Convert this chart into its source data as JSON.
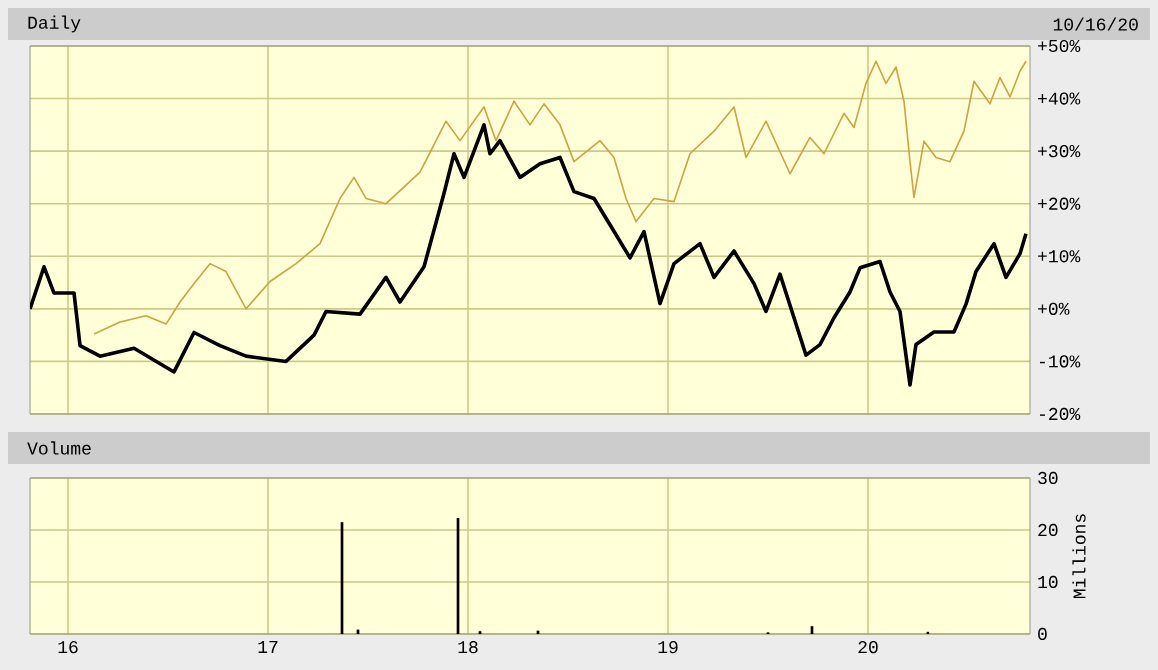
{
  "chart_data": [
    {
      "type": "line",
      "title": "Daily",
      "annotations": [
        "10/16/20"
      ],
      "grid": true,
      "tick_labels": "y",
      "xlim": [
        2015.81,
        2020.81
      ],
      "xticks": [
        2016,
        2017,
        2018,
        2019,
        2020
      ],
      "ylim": [
        -20,
        50
      ],
      "yticks": [
        {
          "value": -20,
          "label": "-20%"
        },
        {
          "value": -10,
          "label": "-10%"
        },
        {
          "value": 0,
          "label": "+0%"
        },
        {
          "value": 10,
          "label": "+10%"
        },
        {
          "value": 20,
          "label": "+20%"
        },
        {
          "value": 30,
          "label": "+30%"
        },
        {
          "value": 40,
          "label": "+40%"
        },
        {
          "value": 50,
          "label": "+50%"
        }
      ],
      "series": [
        {
          "color": "#d4a040",
          "x": [
            2016.13,
            2016.26,
            2016.39,
            2016.49,
            2016.56,
            2016.63,
            2016.71,
            2016.79,
            2016.89,
            2017.01,
            2017.14,
            2017.26,
            2017.36,
            2017.43,
            2017.49,
            2017.59,
            2017.76,
            2017.89,
            2017.96,
            2018.08,
            2018.14,
            2018.23,
            2018.31,
            2018.38,
            2018.46,
            2018.53,
            2018.66,
            2018.73,
            2018.79,
            2018.84,
            2018.93,
            2019.03,
            2019.11,
            2019.23,
            2019.33,
            2019.39,
            2019.49,
            2019.61,
            2019.71,
            2019.78,
            2019.88,
            2019.93,
            2019.99,
            2020.04,
            2020.09,
            2020.14,
            2020.18,
            2020.21,
            2020.23,
            2020.28,
            2020.34,
            2020.41,
            2020.48,
            2020.53,
            2020.61,
            2020.66,
            2020.71,
            2020.76,
            2020.79
          ],
          "values": [
            -4.8,
            -2.5,
            -1.3,
            -2.9,
            1.3,
            4.8,
            8.6,
            7.1,
            0,
            5.2,
            8.6,
            12.4,
            21,
            25,
            21,
            20,
            26,
            35.7,
            32,
            38.4,
            32,
            39.5,
            35,
            39,
            35,
            28,
            32,
            28.8,
            21,
            16.6,
            21,
            20.4,
            29.5,
            33.8,
            38.4,
            28.8,
            35.7,
            25.7,
            32.6,
            29.5,
            37.2,
            34.5,
            42.9,
            47.1,
            42.9,
            46,
            39.5,
            28,
            21.2,
            31.9,
            28.8,
            28,
            33.8,
            43.3,
            39,
            44,
            40.3,
            45.2,
            47.1
          ]
        },
        {
          "color": "#000000",
          "x": [
            2015.81,
            2015.88,
            2015.93,
            2016.03,
            2016.06,
            2016.16,
            2016.33,
            2016.53,
            2016.63,
            2016.76,
            2016.89,
            2017.09,
            2017.23,
            2017.29,
            2017.46,
            2017.59,
            2017.66,
            2017.78,
            2017.88,
            2017.93,
            2017.98,
            2018.08,
            2018.11,
            2018.16,
            2018.26,
            2018.36,
            2018.46,
            2018.53,
            2018.63,
            2018.71,
            2018.81,
            2018.88,
            2018.96,
            2019.03,
            2019.16,
            2019.23,
            2019.33,
            2019.43,
            2019.49,
            2019.56,
            2019.63,
            2019.69,
            2019.76,
            2019.83,
            2019.91,
            2019.96,
            2020.06,
            2020.11,
            2020.16,
            2020.21,
            2020.24,
            2020.33,
            2020.43,
            2020.49,
            2020.54,
            2020.63,
            2020.69,
            2020.76,
            2020.79
          ],
          "values": [
            0,
            8,
            3,
            3,
            -7,
            -9,
            -7.5,
            -12,
            -4.5,
            -7,
            -9,
            -10,
            -5,
            -0.5,
            -1,
            6,
            1.3,
            8,
            22,
            29.5,
            25,
            35,
            29.5,
            32,
            25,
            27.6,
            28.8,
            22.3,
            21,
            16,
            9.7,
            14.7,
            1,
            8.6,
            12.4,
            6,
            11,
            4.8,
            -0.5,
            6.6,
            -1.7,
            -8.8,
            -6.8,
            -1.7,
            3.2,
            7.8,
            9,
            3.2,
            -0.5,
            -14.5,
            -6.8,
            -4.4,
            -4.4,
            0.9,
            7.1,
            12.4,
            6,
            10.5,
            14.3
          ]
        }
      ]
    },
    {
      "type": "bar",
      "title": "Volume",
      "ylabel": "Millions",
      "grid": true,
      "xlim": [
        2015.81,
        2020.81
      ],
      "xticks": [
        {
          "value": 2016,
          "label": "16"
        },
        {
          "value": 2017,
          "label": "17"
        },
        {
          "value": 2018,
          "label": "18"
        },
        {
          "value": 2019,
          "label": "19"
        },
        {
          "value": 2020,
          "label": "20"
        }
      ],
      "ylim": [
        0,
        30
      ],
      "yticks": [
        0,
        10,
        20,
        30
      ],
      "series": [
        {
          "color": "#000000",
          "x": [
            2017.37,
            2017.45,
            2017.95,
            2018.06,
            2018.35,
            2019.5,
            2019.72,
            2020.3
          ],
          "values": [
            21.5,
            0.8,
            22.3,
            0.5,
            0.6,
            0.3,
            1.5,
            0.4
          ]
        }
      ]
    }
  ]
}
